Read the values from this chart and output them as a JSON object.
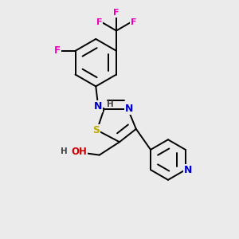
{
  "background_color": "#ebebeb",
  "bond_color": "#000000",
  "bond_width": 1.4,
  "atom_colors": {
    "N": "#0000cc",
    "S": "#bbaa00",
    "O": "#cc0000",
    "F": "#ee00bb",
    "H": "#444444",
    "C": "#000000"
  },
  "font_size": 8.5,
  "dbl_sep": 0.07
}
